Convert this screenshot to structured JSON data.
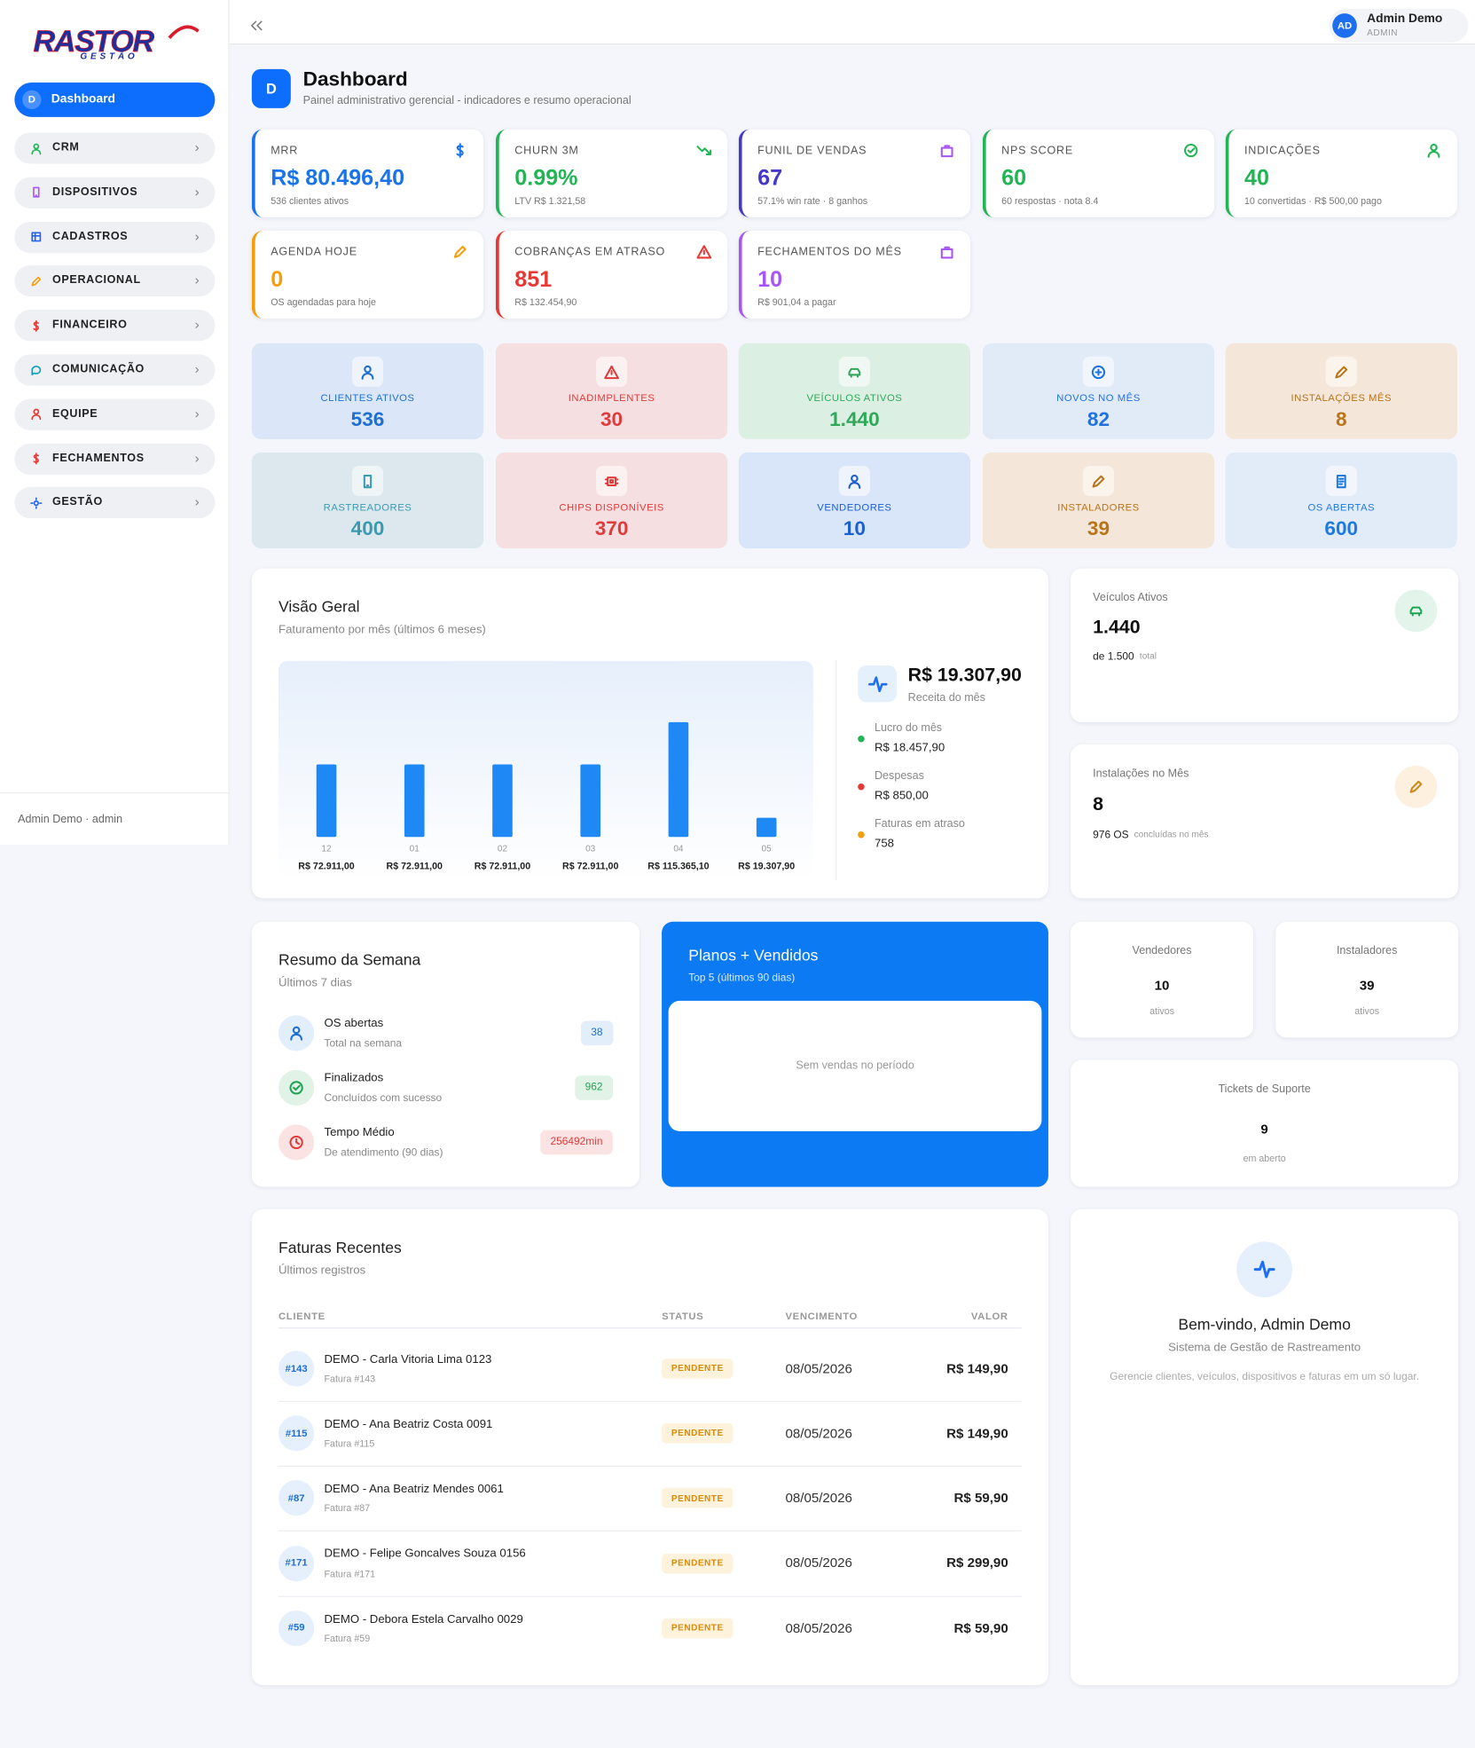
{
  "sidebar": {
    "logo": "RASTOR",
    "logo_sub": "GESTÃO",
    "menu": [
      {
        "badge": "D",
        "label": "Dashboard"
      },
      {
        "label": "CRM"
      },
      {
        "label": "DISPOSITIVOS"
      },
      {
        "label": "CADASTROS"
      },
      {
        "label": "OPERACIONAL"
      },
      {
        "label": "FINANCEIRO"
      },
      {
        "label": "COMUNICAÇÃO"
      },
      {
        "label": "EQUIPE"
      },
      {
        "label": "FECHAMENTOS"
      },
      {
        "label": "GESTÃO"
      }
    ],
    "footer": "Admin Demo · admin"
  },
  "topbar": {
    "avatar": "AD",
    "user": "Admin Demo",
    "role": "ADMIN"
  },
  "header": {
    "icon": "D",
    "title": "Dashboard",
    "subtitle": "Painel administrativo gerencial - indicadores e resumo operacional"
  },
  "kpis": [
    {
      "label": "MRR",
      "value": "R$ 80.496,40",
      "note": "536 clientes ativos"
    },
    {
      "label": "CHURN 3M",
      "value": "0.99%",
      "note": "LTV R$ 1.321,58"
    },
    {
      "label": "FUNIL DE VENDAS",
      "value": "67",
      "note": "57.1% win rate · 8 ganhos"
    },
    {
      "label": "NPS SCORE",
      "value": "60",
      "note": "60 respostas · nota 8.4"
    },
    {
      "label": "INDICAÇÕES",
      "value": "40",
      "note": "10 convertidas · R$ 500,00 pago"
    },
    {
      "label": "AGENDA HOJE",
      "value": "0",
      "note": "OS agendadas para hoje"
    },
    {
      "label": "COBRANÇAS EM ATRASO",
      "value": "851",
      "note": "R$ 132.454,90"
    },
    {
      "label": "FECHAMENTOS DO MÊS",
      "value": "10",
      "note": "R$ 901,04 a pagar"
    }
  ],
  "tiles": [
    {
      "label": "CLIENTES ATIVOS",
      "value": "536"
    },
    {
      "label": "INADIMPLENTES",
      "value": "30"
    },
    {
      "label": "VEÍCULOS ATIVOS",
      "value": "1.440"
    },
    {
      "label": "NOVOS NO MÊS",
      "value": "82"
    },
    {
      "label": "INSTALAÇÕES MÊS",
      "value": "8"
    },
    {
      "label": "RASTREADORES",
      "value": "400"
    },
    {
      "label": "CHIPS DISPONÍVEIS",
      "value": "370"
    },
    {
      "label": "VENDEDORES",
      "value": "10"
    },
    {
      "label": "INSTALADORES",
      "value": "39"
    },
    {
      "label": "OS ABERTAS",
      "value": "600"
    }
  ],
  "overview": {
    "title": "Visão Geral",
    "subtitle": "Faturamento por mês (últimos 6 meses)",
    "summary": {
      "value": "R$ 19.307,90",
      "label": "Receita do mês",
      "items": [
        {
          "label": "Lucro do mês",
          "value": "R$ 18.457,90"
        },
        {
          "label": "Despesas",
          "value": "R$ 850,00"
        },
        {
          "label": "Faturas em atraso",
          "value": "758"
        }
      ]
    }
  },
  "chart_data": {
    "type": "bar",
    "color": "#1e88f5",
    "categories": [
      "12",
      "01",
      "02",
      "03",
      "04",
      "05"
    ],
    "values": [
      72911,
      72911,
      72911,
      72911,
      115365.1,
      19307.9
    ],
    "value_labels": [
      "R$ 72.911,00",
      "R$ 72.911,00",
      "R$ 72.911,00",
      "R$ 72.911,00",
      "R$ 115.365,10",
      "R$ 19.307,90"
    ]
  },
  "vehicles": {
    "title": "Veículos Ativos",
    "value": "1.440",
    "of": "de 1.500",
    "unit": "total"
  },
  "installs": {
    "title": "Instalações no Mês",
    "value": "8",
    "of": "976 OS",
    "unit": "concluídas no mês"
  },
  "week": {
    "title": "Resumo da Semana",
    "subtitle": "Últimos 7 dias",
    "items": [
      {
        "label": "OS abertas",
        "note": "Total na semana",
        "value": "38"
      },
      {
        "label": "Finalizados",
        "note": "Concluídos com sucesso",
        "value": "962"
      },
      {
        "label": "Tempo Médio",
        "note": "De atendimento (90 dias)",
        "value": "256492min"
      }
    ]
  },
  "plans": {
    "title": "Planos + Vendidos",
    "subtitle": "Top 5 (últimos 90 dias)",
    "empty": "Sem vendas no período"
  },
  "sellers": {
    "title": "Vendedores",
    "value": "10",
    "note": "ativos"
  },
  "installers": {
    "title": "Instaladores",
    "value": "39",
    "note": "ativos"
  },
  "tickets": {
    "title": "Tickets de Suporte",
    "value": "9",
    "note": "em aberto"
  },
  "invoices": {
    "title": "Faturas Recentes",
    "subtitle": "Últimos registros",
    "columns": [
      "CLIENTE",
      "STATUS",
      "VENCIMENTO",
      "VALOR"
    ],
    "rows": [
      {
        "id": "#143",
        "client": "DEMO - Carla Vitoria Lima 0123",
        "ref": "Fatura #143",
        "status": "PENDENTE",
        "due": "08/05/2026",
        "amount": "R$ 149,90"
      },
      {
        "id": "#115",
        "client": "DEMO - Ana Beatriz Costa 0091",
        "ref": "Fatura #115",
        "status": "PENDENTE",
        "due": "08/05/2026",
        "amount": "R$ 149,90"
      },
      {
        "id": "#87",
        "client": "DEMO - Ana Beatriz Mendes 0061",
        "ref": "Fatura #87",
        "status": "PENDENTE",
        "due": "08/05/2026",
        "amount": "R$ 59,90"
      },
      {
        "id": "#171",
        "client": "DEMO - Felipe Goncalves Souza 0156",
        "ref": "Fatura #171",
        "status": "PENDENTE",
        "due": "08/05/2026",
        "amount": "R$ 299,90"
      },
      {
        "id": "#59",
        "client": "DEMO - Debora Estela Carvalho 0029",
        "ref": "Fatura #59",
        "status": "PENDENTE",
        "due": "08/05/2026",
        "amount": "R$ 59,90"
      }
    ]
  },
  "welcome": {
    "title": "Bem-vindo, Admin Demo",
    "subtitle": "Sistema de Gestão de Rastreamento",
    "text": "Gerencie clientes, veículos, dispositivos e faturas em um só lugar."
  }
}
